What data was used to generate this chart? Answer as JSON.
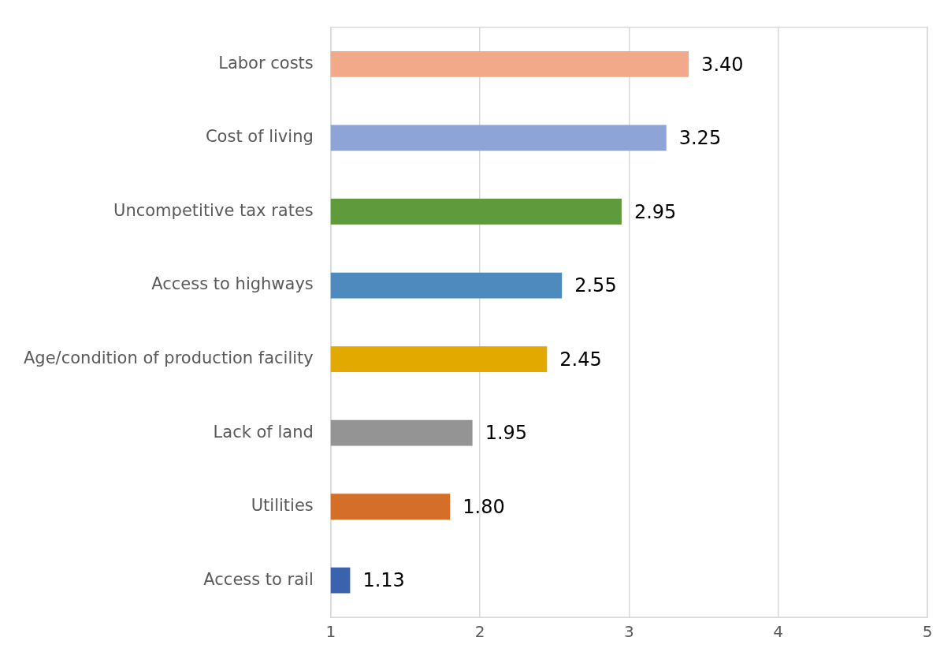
{
  "chart_data": {
    "type": "bar",
    "orientation": "horizontal",
    "categories": [
      "Labor costs",
      "Cost of living",
      "Uncompetitive tax rates",
      "Access to highways",
      "Age/condition of production facility",
      "Lack of land",
      "Utilities",
      "Access to rail"
    ],
    "values": [
      3.4,
      3.25,
      2.95,
      2.55,
      2.45,
      1.95,
      1.8,
      1.13
    ],
    "value_labels": [
      "3.40",
      "3.25",
      "2.95",
      "2.55",
      "2.45",
      "1.95",
      "1.80",
      "1.13"
    ],
    "colors": [
      "#f2a98a",
      "#8fa4d6",
      "#5f9a3c",
      "#4e8abe",
      "#e2aa00",
      "#949494",
      "#d46e28",
      "#3b63ad"
    ],
    "xlim": [
      1,
      5
    ],
    "xticks": [
      1,
      2,
      3,
      4,
      5
    ],
    "grid": "x",
    "legend": false
  }
}
